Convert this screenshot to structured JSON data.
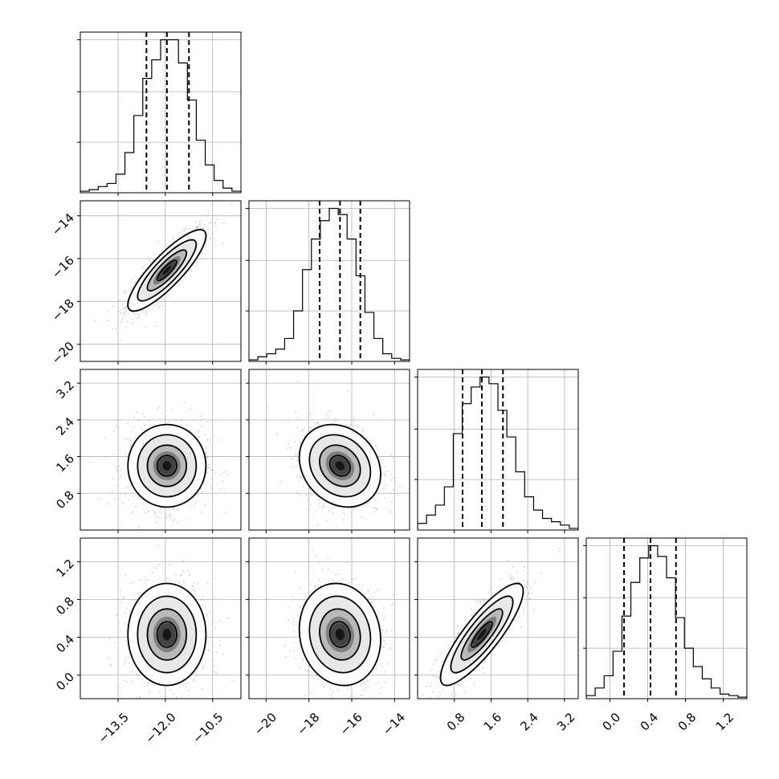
{
  "chart_data": {
    "type": "corner",
    "parameters": [
      {
        "ticks": [
          -13.5,
          -12.0,
          -10.5
        ],
        "tick_labels": [
          "−13.5",
          "−12.0",
          "−10.5"
        ],
        "range": [
          -14.7,
          -9.6
        ],
        "quantiles": [
          -12.6,
          -11.95,
          -11.25
        ],
        "mean": -11.95,
        "sd": 0.62,
        "hist": [
          1,
          2,
          4,
          6,
          12,
          26,
          50,
          74,
          86,
          99,
          99,
          84,
          60,
          34,
          18,
          8,
          3,
          1
        ]
      },
      {
        "ticks": [
          -20,
          -18,
          -16,
          -14
        ],
        "tick_labels": [
          "−20",
          "−18",
          "−16",
          "−14"
        ],
        "range": [
          -20.8,
          -13.3
        ],
        "quantiles": [
          -17.5,
          -16.55,
          -15.6
        ],
        "mean": -16.55,
        "sd": 0.95,
        "hist": [
          1,
          3,
          5,
          8,
          15,
          33,
          60,
          80,
          92,
          100,
          96,
          80,
          56,
          32,
          15,
          5,
          2,
          1
        ]
      },
      {
        "ticks": [
          0.8,
          1.6,
          2.4,
          3.2
        ],
        "tick_labels": [
          "0.8",
          "1.6",
          "2.4",
          "3.2"
        ],
        "range": [
          0.0,
          3.5
        ],
        "quantiles": [
          0.98,
          1.4,
          1.86
        ],
        "mean": 1.4,
        "sd": 0.45,
        "hist": [
          4,
          9,
          15,
          26,
          58,
          76,
          86,
          92,
          88,
          72,
          56,
          35,
          20,
          12,
          7,
          5,
          3,
          1
        ]
      },
      {
        "ticks": [
          0.0,
          0.4,
          0.8,
          1.2
        ],
        "tick_labels": [
          "0.0",
          "0.4",
          "0.8",
          "1.2"
        ],
        "range": [
          -0.25,
          1.45
        ],
        "quantiles": [
          0.15,
          0.43,
          0.7
        ],
        "mean": 0.43,
        "sd": 0.27,
        "hist": [
          2,
          7,
          15,
          31,
          54,
          76,
          92,
          100,
          93,
          79,
          53,
          33,
          21,
          13,
          7,
          3,
          2,
          1
        ]
      }
    ],
    "correlations": {
      "1-0": 0.85,
      "2-0": 0.0,
      "2-1": -0.2,
      "3-0": 0.0,
      "3-1": -0.1,
      "3-2": 0.85
    },
    "contour_levels_sigma": [
      0.5,
      1.0,
      1.5,
      2.0
    ],
    "grid": true,
    "colors": {
      "line": "#000000",
      "grid": "#b0b0b0",
      "scatter": "#aaaaaa"
    }
  }
}
